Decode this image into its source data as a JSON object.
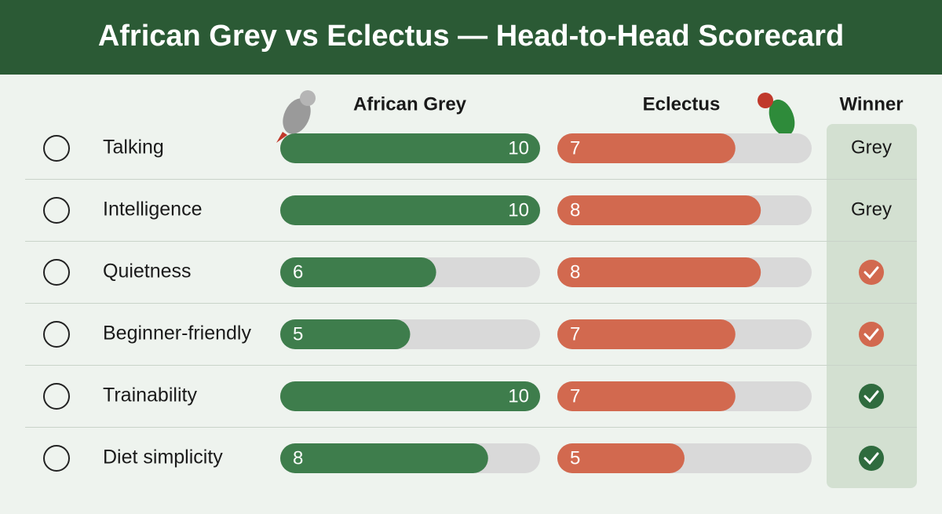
{
  "chart_data": {
    "type": "scorecard",
    "title": "African Grey vs Eclectus — Head-to-Head Scorecard",
    "winner_header": "Winner",
    "xlim": [
      0,
      10
    ],
    "series": [
      {
        "name": "African Grey",
        "color": "#3e7d4c",
        "values": [
          10,
          10,
          6,
          5,
          10,
          8
        ]
      },
      {
        "name": "Eclectus",
        "color": "#d2694f",
        "values": [
          7,
          8,
          8,
          7,
          7,
          5
        ]
      }
    ],
    "categories": [
      "Talking",
      "Intelligence",
      "Quietness",
      "Beginner-friendly",
      "Trainability",
      "Diet simplicity"
    ],
    "winners": [
      "Grey",
      "Grey",
      null,
      null,
      null,
      null
    ],
    "check_colors": [
      null,
      null,
      "#d2694f",
      "#d2694f",
      "#2f6b3e",
      "#2f6b3e"
    ]
  }
}
